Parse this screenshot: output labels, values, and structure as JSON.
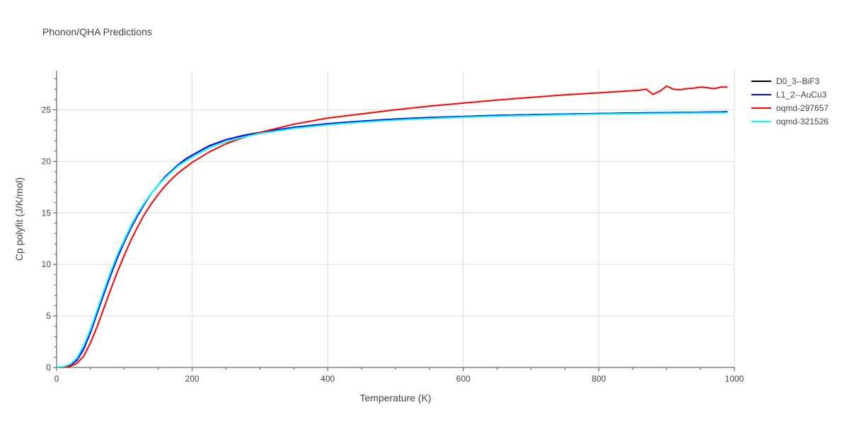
{
  "chart_data": {
    "type": "line",
    "title": "Phonon/QHA Predictions",
    "xlabel": "Temperature (K)",
    "ylabel": "Cp polyfit (J/K/mol)",
    "xlim": [
      0,
      1000
    ],
    "ylim": [
      0,
      28.8
    ],
    "xticks": [
      0,
      200,
      400,
      600,
      800,
      1000
    ],
    "xtick_labels": [
      "0",
      "200",
      "400",
      "600",
      "800",
      "1000"
    ],
    "yticks": [
      0,
      5,
      10,
      15,
      20,
      25
    ],
    "ytick_labels": [
      "0",
      "5",
      "10",
      "15",
      "20",
      "25"
    ],
    "grid": true,
    "legend_position": "top-right",
    "series": [
      {
        "name": "D0_3--BiF3",
        "color": "#000000",
        "x": [
          0,
          10,
          20,
          30,
          40,
          50,
          60,
          70,
          80,
          90,
          100,
          110,
          120,
          130,
          140,
          150,
          160,
          170,
          180,
          190,
          200,
          225,
          250,
          275,
          300,
          350,
          400,
          450,
          500,
          550,
          600,
          650,
          700,
          750,
          800,
          850,
          900,
          950,
          990
        ],
        "y": [
          0,
          0.05,
          0.2,
          0.7,
          1.8,
          3.4,
          5.3,
          7.2,
          9.0,
          10.7,
          12.2,
          13.6,
          14.8,
          15.9,
          16.9,
          17.7,
          18.5,
          19.1,
          19.7,
          20.2,
          20.6,
          21.5,
          22.1,
          22.5,
          22.8,
          23.3,
          23.65,
          23.9,
          24.1,
          24.25,
          24.35,
          24.45,
          24.52,
          24.58,
          24.63,
          24.68,
          24.72,
          24.76,
          24.8
        ]
      },
      {
        "name": "L1_2--AuCu3",
        "color": "#0000ff",
        "x": [
          0,
          10,
          20,
          30,
          40,
          50,
          60,
          70,
          80,
          90,
          100,
          110,
          120,
          130,
          140,
          150,
          160,
          170,
          180,
          190,
          200,
          225,
          250,
          275,
          300,
          350,
          400,
          450,
          500,
          550,
          600,
          650,
          700,
          750,
          800,
          850,
          900,
          950,
          990
        ],
        "y": [
          0,
          0.05,
          0.2,
          0.7,
          1.8,
          3.4,
          5.3,
          7.2,
          9.0,
          10.7,
          12.2,
          13.6,
          14.8,
          15.9,
          16.9,
          17.7,
          18.5,
          19.1,
          19.7,
          20.2,
          20.6,
          21.5,
          22.1,
          22.5,
          22.8,
          23.3,
          23.65,
          23.9,
          24.1,
          24.25,
          24.35,
          24.45,
          24.52,
          24.58,
          24.63,
          24.68,
          24.72,
          24.76,
          24.8
        ]
      },
      {
        "name": "oqmd-297657",
        "color": "#ff0000",
        "x": [
          0,
          10,
          20,
          30,
          40,
          50,
          60,
          70,
          80,
          90,
          100,
          110,
          120,
          130,
          140,
          150,
          160,
          170,
          180,
          190,
          200,
          225,
          250,
          275,
          300,
          350,
          400,
          450,
          500,
          550,
          600,
          650,
          700,
          750,
          800,
          850,
          860,
          870,
          880,
          890,
          900,
          910,
          920,
          930,
          940,
          950,
          960,
          970,
          980,
          990
        ],
        "y": [
          0,
          0.02,
          0.1,
          0.4,
          1.1,
          2.4,
          4.0,
          5.8,
          7.6,
          9.3,
          10.9,
          12.4,
          13.7,
          14.9,
          15.9,
          16.8,
          17.6,
          18.3,
          18.9,
          19.4,
          19.9,
          20.9,
          21.7,
          22.3,
          22.8,
          23.6,
          24.2,
          24.6,
          25.0,
          25.35,
          25.65,
          25.95,
          26.2,
          26.45,
          26.65,
          26.85,
          26.9,
          27.0,
          26.5,
          26.8,
          27.3,
          27.0,
          26.95,
          27.05,
          27.1,
          27.2,
          27.15,
          27.05,
          27.2,
          27.2
        ]
      },
      {
        "name": "oqmd-321526",
        "color": "#00ffff",
        "x": [
          0,
          10,
          20,
          30,
          40,
          50,
          60,
          70,
          80,
          90,
          100,
          110,
          120,
          130,
          140,
          150,
          160,
          170,
          180,
          190,
          200,
          225,
          250,
          275,
          300,
          350,
          400,
          450,
          500,
          550,
          600,
          650,
          700,
          750,
          800,
          850,
          900,
          950,
          990
        ],
        "y": [
          0,
          0.08,
          0.3,
          0.9,
          2.1,
          3.7,
          5.6,
          7.5,
          9.3,
          11.0,
          12.4,
          13.8,
          15.0,
          16.0,
          16.9,
          17.7,
          18.4,
          19.0,
          19.6,
          20.0,
          20.4,
          21.3,
          21.9,
          22.35,
          22.7,
          23.2,
          23.55,
          23.8,
          24.0,
          24.15,
          24.28,
          24.38,
          24.45,
          24.52,
          24.58,
          24.62,
          24.66,
          24.7,
          24.72
        ]
      }
    ]
  }
}
